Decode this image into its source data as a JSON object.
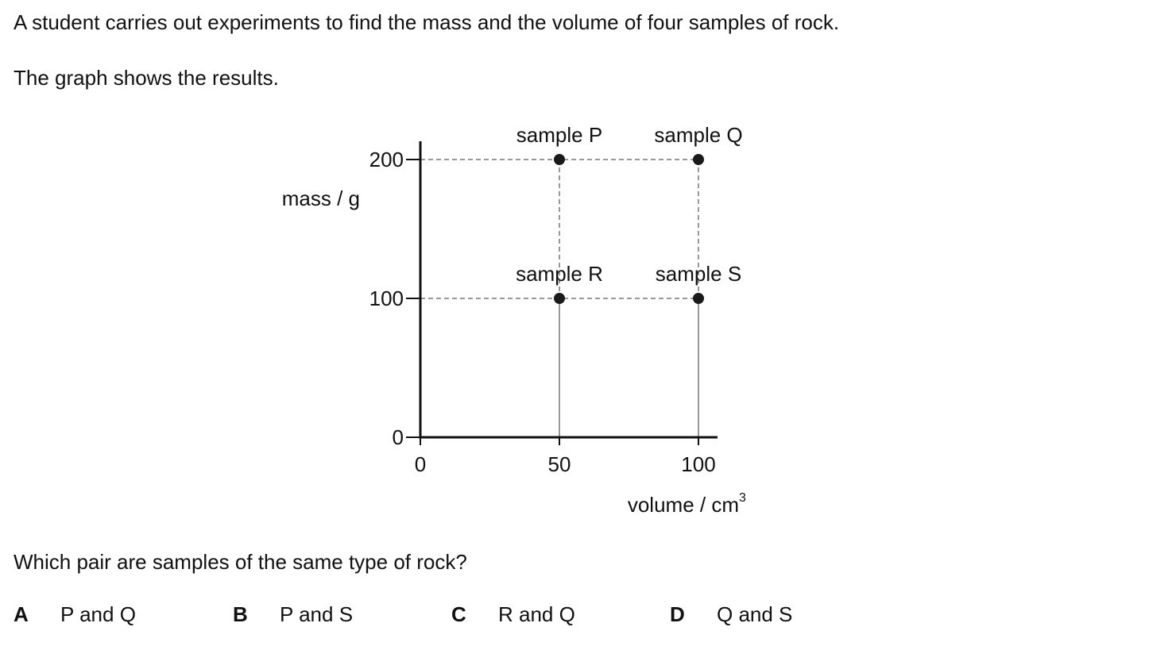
{
  "question": {
    "intro": "A student carries out experiments to find the mass and the volume of four samples of rock.",
    "graph_caption": "The graph shows the results.",
    "prompt": "Which pair are samples of the same type of rock?"
  },
  "options": [
    {
      "letter": "A",
      "text": "P and Q"
    },
    {
      "letter": "B",
      "text": "P and S"
    },
    {
      "letter": "C",
      "text": "R and Q"
    },
    {
      "letter": "D",
      "text": "Q and S"
    }
  ],
  "chart_data": {
    "type": "scatter",
    "xlabel": "volume / cm",
    "xlabel_superscript": "3",
    "ylabel": "mass / g",
    "xlim": [
      0,
      100
    ],
    "ylim": [
      0,
      200
    ],
    "x_ticks": [
      0,
      50,
      100
    ],
    "y_ticks": [
      0,
      100,
      200
    ],
    "grid": false,
    "dashed_guides": true,
    "points": [
      {
        "label": "sample P",
        "x": 50,
        "y": 200
      },
      {
        "label": "sample Q",
        "x": 100,
        "y": 200
      },
      {
        "label": "sample R",
        "x": 50,
        "y": 100
      },
      {
        "label": "sample S",
        "x": 100,
        "y": 100
      }
    ],
    "colors": {
      "axis": "#111111",
      "point": "#1a1a1a",
      "guide": "#333333"
    }
  }
}
